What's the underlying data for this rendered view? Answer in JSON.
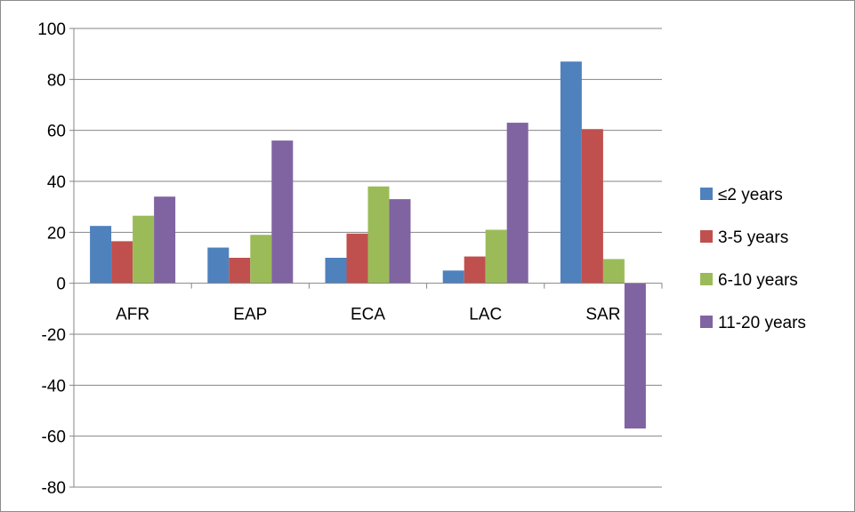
{
  "chart_data": {
    "type": "bar",
    "categories": [
      "AFR",
      "EAP",
      "ECA",
      "LAC",
      "SAR"
    ],
    "series": [
      {
        "name": "≤2 years",
        "color": "#4f81bd",
        "values": [
          22.5,
          14,
          10,
          5,
          87
        ]
      },
      {
        "name": "3-5 years",
        "color": "#c0504d",
        "values": [
          16.5,
          10,
          19.5,
          10.5,
          60.5
        ]
      },
      {
        "name": "6-10 years",
        "color": "#9bbb59",
        "values": [
          26.5,
          19,
          38,
          21,
          9.5
        ]
      },
      {
        "name": "11-20 years",
        "color": "#8064a2",
        "values": [
          34,
          56,
          33,
          63,
          -57
        ]
      }
    ],
    "ylim": [
      -80,
      100
    ],
    "yticks": [
      100,
      80,
      60,
      40,
      20,
      0,
      -20,
      -40,
      -60,
      -80
    ],
    "grid": true,
    "legend_position": "right"
  }
}
